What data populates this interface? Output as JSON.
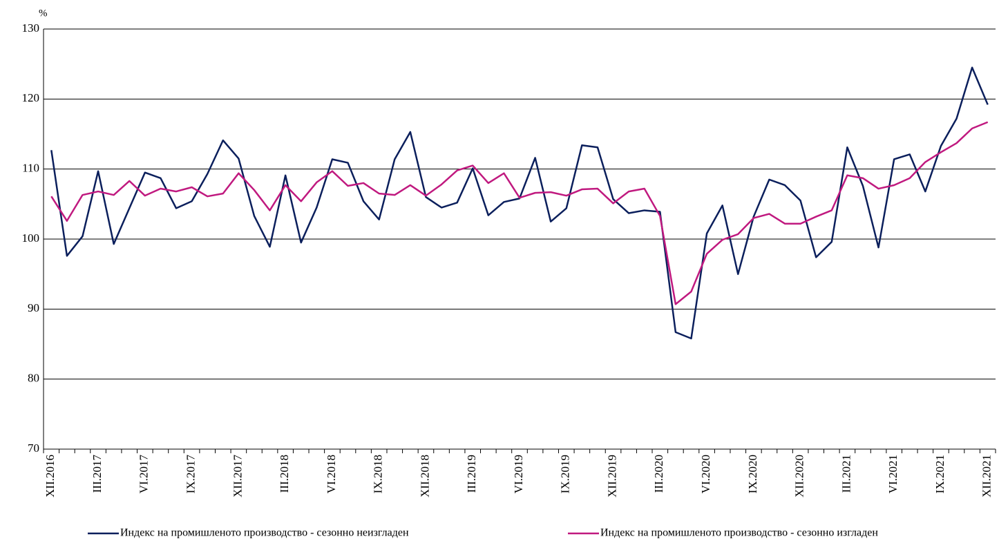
{
  "chart_data": {
    "type": "line",
    "ylabel": "%",
    "categories": [
      "XII.2016",
      null,
      null,
      "III.2017",
      null,
      null,
      "VI.2017",
      null,
      null,
      "IX.2017",
      null,
      null,
      "XII.2017",
      null,
      null,
      "III.2018",
      null,
      null,
      "VI.2018",
      null,
      null,
      "IX.2018",
      null,
      null,
      "XII.2018",
      null,
      null,
      "III.2019",
      null,
      null,
      "VI.2019",
      null,
      null,
      "IX.2019",
      null,
      null,
      "XII.2019",
      null,
      null,
      "III.2020",
      null,
      null,
      "VI.2020",
      null,
      null,
      "IX.2020",
      null,
      null,
      "XII.2020",
      null,
      null,
      "III.2021",
      null,
      null,
      "VI.2021",
      null,
      null,
      "IX.2021",
      null,
      null,
      "XII.2021"
    ],
    "series": [
      {
        "name": "Индекс на промишленото производство - сезонно  неизгладен",
        "color": "#0b1f5c",
        "values": [
          112.7,
          97.6,
          100.4,
          109.7,
          99.3,
          104.4,
          109.5,
          108.7,
          104.4,
          105.4,
          109.3,
          114.1,
          111.5,
          103.3,
          98.9,
          109.1,
          99.5,
          104.5,
          111.4,
          110.9,
          105.4,
          102.8,
          111.4,
          115.3,
          106.0,
          104.5,
          105.2,
          110.1,
          103.4,
          105.3,
          105.8,
          111.6,
          102.5,
          104.4,
          113.4,
          113.1,
          105.7,
          103.7,
          104.1,
          103.9,
          86.7,
          85.8,
          100.8,
          104.8,
          95.0,
          103.2,
          108.5,
          107.7,
          105.5,
          97.4,
          99.6,
          113.1,
          107.6,
          98.8,
          111.4,
          112.1,
          106.8,
          113.3,
          117.2,
          124.5,
          119.2
        ]
      },
      {
        "name": "Индекс на промишленото производство - сезонно изгладен",
        "color": "#c0197f",
        "values": [
          106.1,
          102.6,
          106.3,
          106.8,
          106.3,
          108.3,
          106.2,
          107.2,
          106.8,
          107.4,
          106.1,
          106.5,
          109.4,
          107.0,
          104.1,
          107.7,
          105.4,
          108.1,
          109.7,
          107.6,
          108.0,
          106.5,
          106.3,
          107.7,
          106.2,
          107.8,
          109.8,
          110.5,
          108.0,
          109.4,
          105.9,
          106.6,
          106.7,
          106.2,
          107.1,
          107.2,
          105.1,
          106.8,
          107.2,
          103.3,
          90.7,
          92.5,
          97.9,
          99.9,
          100.7,
          103.0,
          103.6,
          102.2,
          102.2,
          103.2,
          104.1,
          109.1,
          108.7,
          107.2,
          107.7,
          108.7,
          111.0,
          112.4,
          113.7,
          115.8,
          116.7
        ]
      }
    ],
    "ylim": [
      70,
      130
    ],
    "yticks": [
      70,
      80,
      90,
      100,
      110,
      120,
      130
    ],
    "grid": true,
    "legend": "bottom"
  }
}
